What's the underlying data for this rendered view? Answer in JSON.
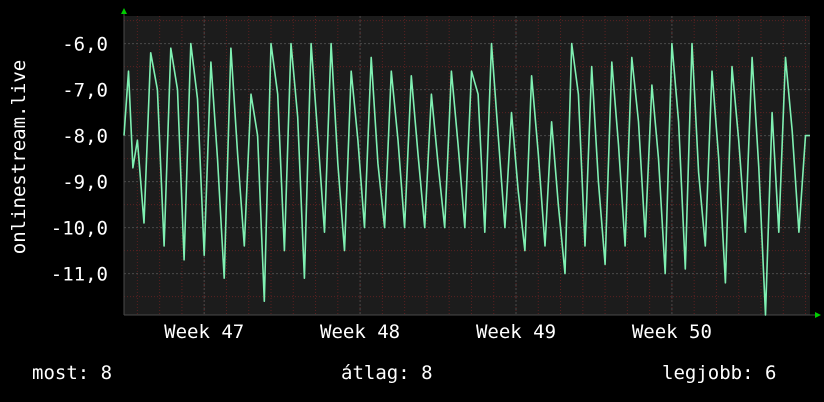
{
  "chart_data": {
    "type": "line",
    "title": "",
    "ylabel": "onlinestream.live",
    "xlabel": "",
    "ylim": [
      -11.9,
      -5.4
    ],
    "y_ticks": [
      -6,
      -7,
      -8,
      -9,
      -10,
      -11
    ],
    "y_tick_labels": [
      "-6,0",
      "-7,0",
      "-8,0",
      "-9,0",
      "-10,0",
      "-11,0"
    ],
    "x_ticks": [
      {
        "label": "Week 47",
        "x": 11
      },
      {
        "label": "Week 48",
        "x": 18
      },
      {
        "label": "Week 49",
        "x": 25
      },
      {
        "label": "Week 50",
        "x": 32
      }
    ],
    "xlim": [
      7.4,
      38.2
    ],
    "grid": true,
    "series": [
      {
        "color": "#7ff0b2",
        "x": [
          7.4,
          7.6,
          7.8,
          8.0,
          8.3,
          8.6,
          8.9,
          9.2,
          9.5,
          9.8,
          10.1,
          10.4,
          10.7,
          11.0,
          11.3,
          11.6,
          11.9,
          12.2,
          12.5,
          12.8,
          13.1,
          13.4,
          13.7,
          14.0,
          14.3,
          14.6,
          14.9,
          15.2,
          15.5,
          15.8,
          16.1,
          16.4,
          16.7,
          17.0,
          17.3,
          17.6,
          17.9,
          18.2,
          18.5,
          18.8,
          19.1,
          19.4,
          19.7,
          20.0,
          20.3,
          20.6,
          20.9,
          21.2,
          21.5,
          21.8,
          22.1,
          22.4,
          22.7,
          23.0,
          23.3,
          23.6,
          23.9,
          24.2,
          24.5,
          24.8,
          25.1,
          25.4,
          25.7,
          26.0,
          26.3,
          26.6,
          26.9,
          27.2,
          27.5,
          27.8,
          28.1,
          28.4,
          28.7,
          29.0,
          29.3,
          29.6,
          29.9,
          30.2,
          30.5,
          30.8,
          31.1,
          31.4,
          31.7,
          32.0,
          32.3,
          32.6,
          32.9,
          33.2,
          33.5,
          33.8,
          34.1,
          34.4,
          34.7,
          35.0,
          35.3,
          35.6,
          35.9,
          36.2,
          36.5,
          36.8,
          37.1,
          37.4,
          37.7,
          38.0,
          38.2
        ],
        "y": [
          -8.0,
          -6.6,
          -8.7,
          -8.1,
          -9.9,
          -6.2,
          -7.0,
          -10.4,
          -6.1,
          -7.0,
          -10.7,
          -6.0,
          -7.2,
          -10.6,
          -6.4,
          -8.5,
          -11.1,
          -6.1,
          -8.4,
          -10.4,
          -7.1,
          -8.0,
          -11.6,
          -6.0,
          -7.1,
          -10.5,
          -6.0,
          -7.6,
          -11.1,
          -6.0,
          -8.0,
          -10.1,
          -6.0,
          -8.6,
          -10.5,
          -6.6,
          -8.1,
          -10.0,
          -6.3,
          -8.6,
          -10.0,
          -6.6,
          -8.1,
          -10.0,
          -6.7,
          -8.4,
          -10.0,
          -7.1,
          -8.6,
          -10.0,
          -6.6,
          -8.2,
          -10.0,
          -6.6,
          -7.1,
          -10.1,
          -6.0,
          -8.0,
          -10.0,
          -7.5,
          -9.2,
          -10.5,
          -6.7,
          -8.4,
          -10.4,
          -7.7,
          -9.5,
          -11.0,
          -6.0,
          -7.1,
          -10.4,
          -6.5,
          -9.0,
          -10.8,
          -6.4,
          -8.2,
          -10.4,
          -6.3,
          -7.7,
          -10.2,
          -6.9,
          -8.5,
          -11.0,
          -6.0,
          -7.7,
          -10.9,
          -6.0,
          -8.8,
          -10.4,
          -6.6,
          -8.5,
          -11.2,
          -6.5,
          -8.1,
          -10.1,
          -6.3,
          -8.7,
          -11.9,
          -7.5,
          -10.1,
          -6.3,
          -7.9,
          -10.1,
          -8.0,
          -8.0
        ]
      }
    ]
  },
  "footer": {
    "current": "most: 8",
    "average": "átlag: 8",
    "best": "legjobb: 6"
  },
  "colors": {
    "background": "#000000",
    "plot_background": "#1c1c1c",
    "grid": "#4a4a4a",
    "minor_grid": "#5a2020",
    "line": "#7ff0b2",
    "text": "#ffffff",
    "arrow": "#00cc00"
  }
}
